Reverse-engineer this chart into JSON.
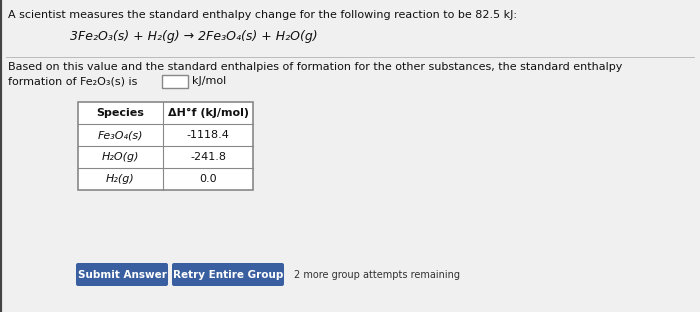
{
  "bg_color": "#f0f0f0",
  "white_panel_color": "#ffffff",
  "title_line1": "A scientist measures the standard enthalpy change for the following reaction to be 82.5 kJ:",
  "reaction_parts": {
    "text": "3Fe₂O₃(s) + H₂(g) → 2Fe₃O₄(s) + H₂O(g)"
  },
  "body_line1": "Based on this value and the standard enthalpies of formation for the other substances, the standard enthalpy",
  "body_line2": "formation of Fe₂O₃(s) is",
  "body_line3": "kJ/mol",
  "table_header_col1": "Species",
  "table_header_col2": "ΔH°f (kJ/mol)",
  "table_rows": [
    [
      "Fe₃O₄(s)",
      "-1118.4"
    ],
    [
      "H₂O(g)",
      "-241.8"
    ],
    [
      "H₂(g)",
      "0.0"
    ]
  ],
  "btn1_text": "Submit Answer",
  "btn1_color": "#3a5fa0",
  "btn2_text": "Retry Entire Group",
  "btn2_color": "#3a5fa0",
  "footer_text": "2 more group attempts remaining",
  "input_box_color": "#ffffff",
  "table_bg": "#ffffff",
  "table_border": "#888888",
  "text_color": "#111111"
}
